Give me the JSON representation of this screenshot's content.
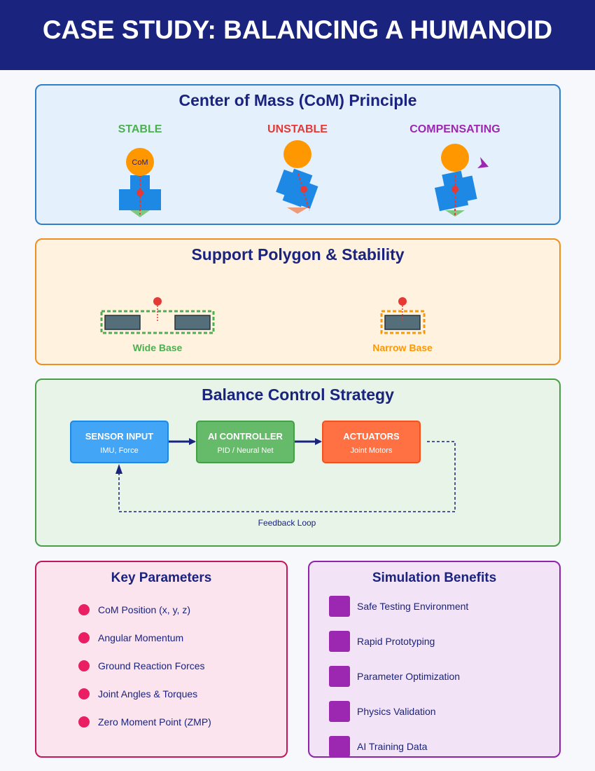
{
  "header": {
    "title": "CASE STUDY: BALANCING A HUMANOID",
    "background": "#1a237e"
  },
  "com_section": {
    "title": "Center of Mass (CoM) Principle",
    "states": [
      {
        "label": "STABLE",
        "color": "#4caf50"
      },
      {
        "label": "UNSTABLE",
        "color": "#e53935"
      },
      {
        "label": "COMPENSATING",
        "color": "#9c27b0"
      }
    ],
    "com_label": "CoM"
  },
  "polygon_section": {
    "title": "Support Polygon & Stability",
    "wide_label": "Wide Base",
    "narrow_label": "Narrow Base"
  },
  "control_section": {
    "title": "Balance Control Strategy",
    "boxes": [
      {
        "title": "SENSOR INPUT",
        "subtitle": "IMU, Force"
      },
      {
        "title": "AI CONTROLLER",
        "subtitle": "PID / Neural Net"
      },
      {
        "title": "ACTUATORS",
        "subtitle": "Joint Motors"
      }
    ],
    "feedback_label": "Feedback Loop"
  },
  "key_parameters": {
    "title": "Key Parameters",
    "items": [
      "CoM Position (x, y, z)",
      "Angular Momentum",
      "Ground Reaction Forces",
      "Joint Angles & Torques",
      "Zero Moment Point (ZMP)"
    ]
  },
  "simulation_benefits": {
    "title": "Simulation Benefits",
    "items": [
      "Safe Testing Environment",
      "Rapid Prototyping",
      "Parameter Optimization",
      "Physics Validation",
      "AI Training Data"
    ]
  }
}
